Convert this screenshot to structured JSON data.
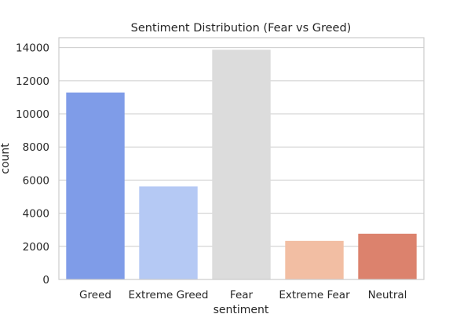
{
  "chart_data": {
    "type": "bar",
    "title": "Sentiment Distribution (Fear vs Greed)",
    "xlabel": "sentiment",
    "ylabel": "count",
    "categories": [
      "Greed",
      "Extreme Greed",
      "Fear",
      "Extreme Fear",
      "Neutral"
    ],
    "values": [
      11290,
      5620,
      13870,
      2330,
      2760
    ],
    "colors": [
      "#7f9ce8",
      "#b5c9f4",
      "#dcdcdc",
      "#f2bea3",
      "#dc826d"
    ],
    "ylim": [
      0,
      14600
    ],
    "yticks": [
      0,
      2000,
      4000,
      6000,
      8000,
      10000,
      12000,
      14000
    ],
    "grid": true,
    "legend": "none"
  }
}
